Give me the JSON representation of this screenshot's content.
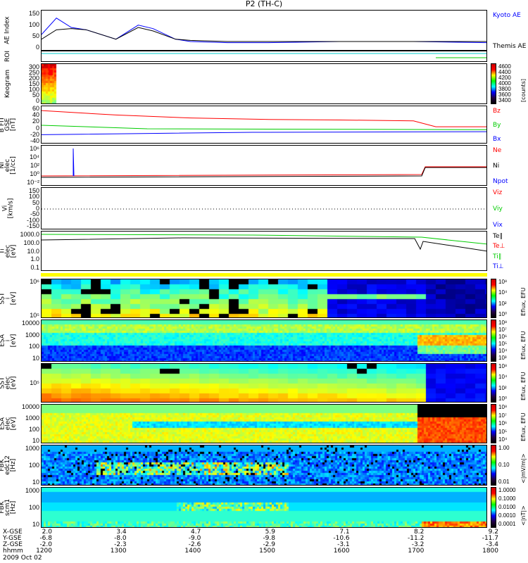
{
  "title": "P2 (TH-C)",
  "panels": [
    {
      "id": "ae",
      "ylabel": "AE Index",
      "ticks": [
        "150",
        "100",
        "50",
        "0"
      ],
      "legend": [
        {
          "t": "Kyoto AE",
          "c": "#0000ff"
        },
        {
          "t": "Themis AE",
          "c": "#000000"
        }
      ]
    },
    {
      "id": "roi",
      "ylabel": "ROI",
      "ticks": [],
      "legend": []
    },
    {
      "id": "keo",
      "ylabel": "Keogram",
      "ticks": [
        "300",
        "250",
        "200",
        "150",
        "100",
        "50",
        "0"
      ],
      "legend": [],
      "cbar": {
        "labels": [
          "4600",
          "4400",
          "4200",
          "4000",
          "3800",
          "3600",
          "3400"
        ],
        "title": "[counts]"
      }
    },
    {
      "id": "bfit",
      "ylabel": "B FIT\nGSE\n[nT]",
      "ticks": [
        "60",
        "40",
        "20",
        "0",
        "-20",
        "-40"
      ],
      "legend": [
        {
          "t": "Bz",
          "c": "#ff0000"
        },
        {
          "t": "By",
          "c": "#00cc00"
        },
        {
          "t": "Bx",
          "c": "#0000ff"
        }
      ]
    },
    {
      "id": "ni",
      "ylabel": "Ni\nelec\n[1/cc]",
      "ticks": [
        "10⁶",
        "10⁴",
        "10²",
        "10⁰",
        "10⁻²"
      ],
      "legend": [
        {
          "t": "Ne",
          "c": "#ff0000"
        },
        {
          "t": "Ni",
          "c": "#000000"
        },
        {
          "t": "Npot",
          "c": "#0000ff"
        }
      ]
    },
    {
      "id": "vi",
      "ylabel": "Vi\n[km/s]",
      "ticks": [
        "150",
        "100",
        "50",
        "0",
        "-50",
        "-100",
        "-150"
      ],
      "legend": [
        {
          "t": "Viz",
          "c": "#ff0000"
        },
        {
          "t": "Viy",
          "c": "#00cc00"
        },
        {
          "t": "Vix",
          "c": "#0000ff"
        }
      ]
    },
    {
      "id": "ti",
      "ylabel": "Ti\nelec\n[eV]",
      "ticks": [
        "1000.0",
        "100.0",
        "10.0",
        "1.0",
        "0.1"
      ],
      "legend": [
        {
          "t": "Te∥",
          "c": "#000000"
        },
        {
          "t": "Te⊥",
          "c": "#ff0000"
        },
        {
          "t": "Ti∥",
          "c": "#00cc00"
        },
        {
          "t": "Ti⊥",
          "c": "#0000ff"
        }
      ]
    },
    {
      "id": "sst_i",
      "ylabel": "SST\ni\n[eV]",
      "ticks": [
        "10⁶",
        "10⁵"
      ],
      "cbar": {
        "labels": [
          "10⁸",
          "10⁴",
          "10²",
          "10⁰"
        ],
        "title": "Eflux, EFU"
      }
    },
    {
      "id": "esa_i",
      "ylabel": "ESA\ni\n[eV]",
      "ticks": [
        "10000",
        "1000",
        "100",
        "10"
      ],
      "cbar": {
        "labels": [
          "10⁸",
          "10⁷",
          "10⁶",
          "10⁵",
          "10⁴",
          "10³"
        ],
        "title": "Eflux, EFU"
      }
    },
    {
      "id": "sst_e",
      "ylabel": "SST\nelec\n[eV]",
      "ticks": [
        "10⁵"
      ],
      "cbar": {
        "labels": [
          "10⁸",
          "10⁴",
          "10²",
          "10⁰"
        ],
        "title": "Eflux, EFU"
      }
    },
    {
      "id": "esa_e",
      "ylabel": "ESA\nelec\n[eV]",
      "ticks": [
        "10000",
        "1000",
        "100",
        "10"
      ],
      "cbar": {
        "labels": [
          "10⁸",
          "10⁷",
          "10⁶",
          "10⁵",
          "10⁴"
        ],
        "title": "Eflux, EFU"
      }
    },
    {
      "id": "fbk1",
      "ylabel": "FBK\nedc12\n[Hz]",
      "ticks": [
        "1000",
        "100",
        "10"
      ],
      "cbar": {
        "labels": [
          "1.00",
          "0.10",
          "0.01"
        ],
        "title": "<|mV/m|>"
      }
    },
    {
      "id": "fbk2",
      "ylabel": "FBK\nscm1\n[Hz]",
      "ticks": [
        "1000",
        "100",
        "10"
      ],
      "cbar": {
        "labels": [
          "1.0000",
          "0.1000",
          "0.0100",
          "0.0010",
          "0.0001"
        ],
        "title": "<|nT|>"
      }
    }
  ],
  "xaxis": {
    "row_labels": [
      "X-GSE",
      "Y-GSE",
      "Z-GSE",
      "hhmm"
    ],
    "date": "2009 Oct 02",
    "columns": [
      [
        "2.0",
        "-6.8",
        "-2.0",
        "1200"
      ],
      [
        "3.4",
        "-8.0",
        "-2.3",
        "1300"
      ],
      [
        "4.7",
        "-9.0",
        "-2.6",
        "1400"
      ],
      [
        "5.9",
        "-9.8",
        "-2.9",
        "1500"
      ],
      [
        "7.1",
        "-10.6",
        "-3.1",
        "1600"
      ],
      [
        "8.2",
        "-11.2",
        "-3.2",
        "1700"
      ],
      [
        "9.2",
        "-11.7",
        "-3.4",
        "1800"
      ]
    ]
  },
  "chart_data": {
    "type": "line",
    "title": "P2 (TH-C)",
    "x_range_hhmm": [
      "1200",
      "1800"
    ],
    "ae_index": {
      "ylim": [
        0,
        150
      ],
      "hours": [
        12.0,
        12.2,
        12.4,
        12.6,
        13.0,
        13.3,
        13.5,
        13.8,
        14.0,
        14.5,
        15.0,
        16.0,
        17.0,
        18.0
      ],
      "kyoto": [
        60,
        130,
        90,
        80,
        40,
        100,
        85,
        40,
        30,
        25,
        25,
        30,
        30,
        25
      ],
      "themis": [
        40,
        80,
        85,
        80,
        40,
        90,
        75,
        40,
        35,
        30,
        30,
        30,
        30,
        30
      ]
    },
    "bfit_bz": {
      "ylim": [
        -40,
        80
      ],
      "hours": [
        12,
        13,
        14,
        15,
        16,
        17,
        17.3,
        18
      ],
      "values": [
        70,
        55,
        45,
        40,
        38,
        35,
        15,
        15
      ]
    }
  }
}
